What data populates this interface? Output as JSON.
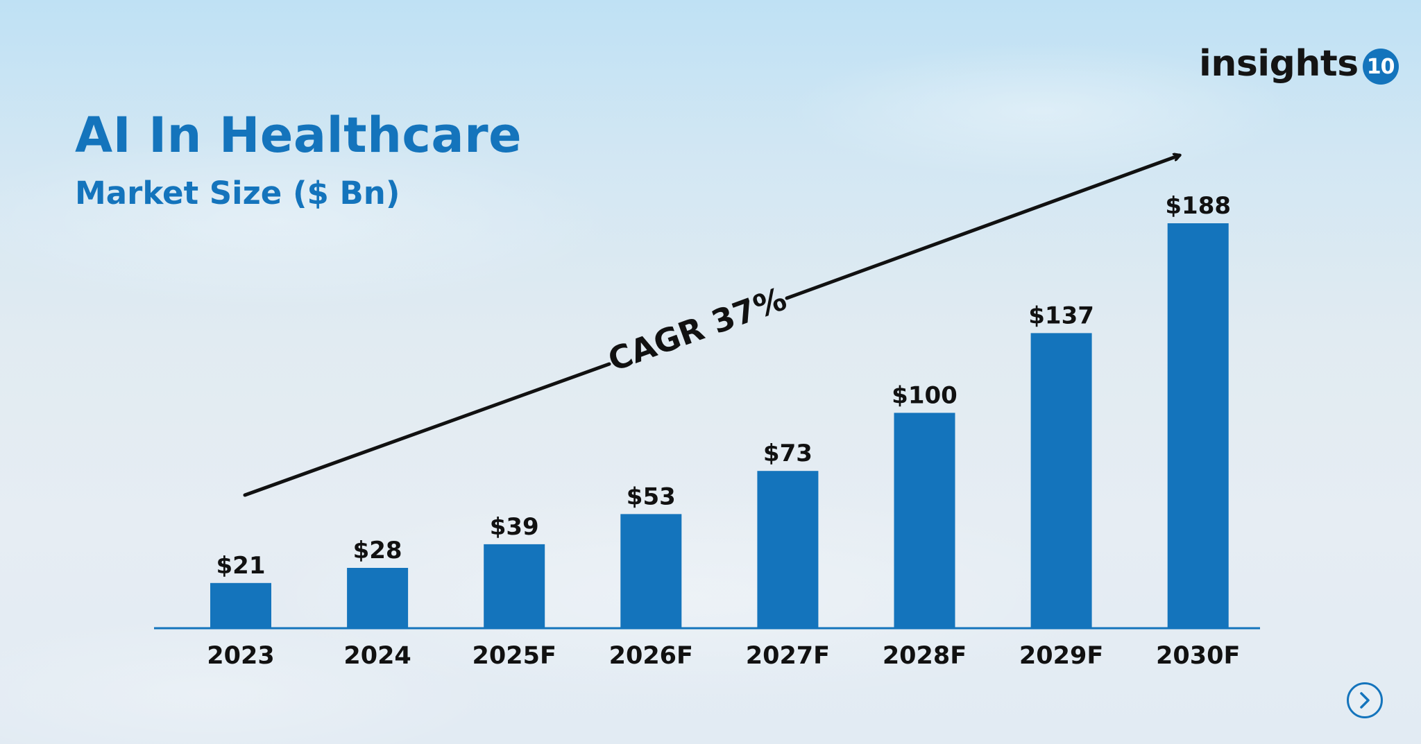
{
  "brand": {
    "logo_text": "insights",
    "logo_number": "10",
    "accent": "#1474bc"
  },
  "nav": {
    "next_icon": "chevron-right-icon"
  },
  "chart_data": {
    "type": "bar",
    "title": "AI In Healthcare",
    "subtitle": "Market Size ($ Bn)",
    "categories": [
      "2023",
      "2024",
      "2025F",
      "2026F",
      "2027F",
      "2028F",
      "2029F",
      "2030F"
    ],
    "values": [
      21,
      28,
      39,
      53,
      73,
      100,
      137,
      188
    ],
    "value_labels": [
      "$21",
      "$28",
      "$39",
      "$53",
      "$73",
      "$100",
      "$137",
      "$188"
    ],
    "annotation": "CAGR 37%",
    "bar_color": "#1474bc",
    "xlabel": "",
    "ylabel": "",
    "ylim": [
      0,
      188
    ],
    "grid": false,
    "legend": "none"
  }
}
